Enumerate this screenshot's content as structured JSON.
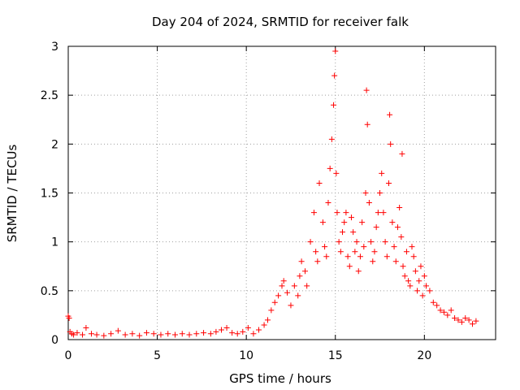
{
  "chart_data": {
    "type": "scatter",
    "title": "Day 204 of 2024, SRMTID for receiver falk",
    "xlabel": "GPS time / hours",
    "ylabel": "SRMTID / TECUs",
    "xlim": [
      0,
      24
    ],
    "ylim": [
      0,
      3
    ],
    "grid": true,
    "marker": "+",
    "color": "#ff0000",
    "x_ticks": [
      0,
      5,
      10,
      15,
      20
    ],
    "x_tick_labels": [
      "0",
      "5",
      "10",
      "15",
      "20"
    ],
    "y_ticks": [
      0,
      0.5,
      1,
      1.5,
      2,
      2.5,
      3
    ],
    "y_tick_labels": [
      "0",
      "0.5",
      "1",
      "1.5",
      "2",
      "2.5",
      "3"
    ],
    "series": [
      {
        "name": "SRMTID",
        "x": [
          0.0,
          0.05,
          0.1,
          0.2,
          0.3,
          0.5,
          0.8,
          1.0,
          1.3,
          1.6,
          2.0,
          2.4,
          2.8,
          3.2,
          3.6,
          4.0,
          4.4,
          4.8,
          5.2,
          5.6,
          6.0,
          6.4,
          6.8,
          7.2,
          7.6,
          8.0,
          8.3,
          8.6,
          8.9,
          9.2,
          9.5,
          9.8,
          10.1,
          10.4,
          10.7,
          11.0,
          11.2,
          11.4,
          11.6,
          11.8,
          12.0,
          12.1,
          12.3,
          12.5,
          12.7,
          12.9,
          13.0,
          13.1,
          13.3,
          13.4,
          13.6,
          13.8,
          13.9,
          14.0,
          14.1,
          14.3,
          14.4,
          14.5,
          14.6,
          14.7,
          14.8,
          14.9,
          14.95,
          15.0,
          15.05,
          15.1,
          15.2,
          15.3,
          15.4,
          15.5,
          15.6,
          15.7,
          15.8,
          15.9,
          16.0,
          16.1,
          16.2,
          16.3,
          16.4,
          16.5,
          16.6,
          16.7,
          16.75,
          16.8,
          16.9,
          17.0,
          17.1,
          17.2,
          17.3,
          17.4,
          17.5,
          17.6,
          17.7,
          17.8,
          17.9,
          18.0,
          18.05,
          18.1,
          18.2,
          18.3,
          18.4,
          18.5,
          18.6,
          18.7,
          18.75,
          18.8,
          18.9,
          19.0,
          19.1,
          19.2,
          19.3,
          19.4,
          19.5,
          19.6,
          19.7,
          19.8,
          19.9,
          20.0,
          20.1,
          20.3,
          20.5,
          20.7,
          20.9,
          21.1,
          21.3,
          21.5,
          21.7,
          21.9,
          22.1,
          22.3,
          22.5,
          22.7,
          22.9
        ],
        "y": [
          0.24,
          0.22,
          0.08,
          0.06,
          0.05,
          0.07,
          0.05,
          0.12,
          0.06,
          0.05,
          0.04,
          0.06,
          0.09,
          0.05,
          0.06,
          0.04,
          0.07,
          0.06,
          0.05,
          0.06,
          0.05,
          0.06,
          0.05,
          0.06,
          0.07,
          0.06,
          0.08,
          0.1,
          0.12,
          0.07,
          0.06,
          0.08,
          0.12,
          0.06,
          0.1,
          0.15,
          0.2,
          0.3,
          0.38,
          0.45,
          0.55,
          0.6,
          0.48,
          0.35,
          0.55,
          0.45,
          0.65,
          0.8,
          0.7,
          0.55,
          1.0,
          1.3,
          0.9,
          0.8,
          1.6,
          1.2,
          0.95,
          0.85,
          1.4,
          1.75,
          2.05,
          2.4,
          2.7,
          2.95,
          1.7,
          1.3,
          1.0,
          0.9,
          1.1,
          1.2,
          1.3,
          0.85,
          0.75,
          1.25,
          1.1,
          0.9,
          1.0,
          0.7,
          0.85,
          1.2,
          0.95,
          1.5,
          2.55,
          2.2,
          1.4,
          1.0,
          0.8,
          0.9,
          1.15,
          1.3,
          1.5,
          1.7,
          1.3,
          1.0,
          0.85,
          1.6,
          2.3,
          2.0,
          1.2,
          0.95,
          0.8,
          1.15,
          1.35,
          1.05,
          1.9,
          0.75,
          0.65,
          0.9,
          0.6,
          0.55,
          0.95,
          0.85,
          0.7,
          0.5,
          0.6,
          0.75,
          0.45,
          0.65,
          0.55,
          0.5,
          0.38,
          0.35,
          0.3,
          0.28,
          0.25,
          0.3,
          0.22,
          0.2,
          0.18,
          0.22,
          0.2,
          0.16,
          0.19
        ]
      }
    ]
  }
}
